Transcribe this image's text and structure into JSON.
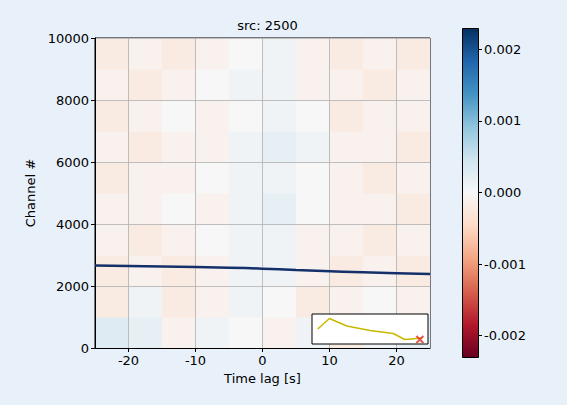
{
  "chart_data": {
    "type": "heatmap",
    "title": "src: 2500",
    "xlabel": "Time lag [s]",
    "ylabel": "Channel #",
    "xlim": [
      -25,
      25
    ],
    "ylim": [
      0,
      10000
    ],
    "xticks": [
      -20,
      -10,
      0,
      10,
      20
    ],
    "yticks": [
      0,
      2000,
      4000,
      6000,
      8000,
      10000
    ],
    "grid": true,
    "x_edges": [
      -25,
      -20,
      -15,
      -10,
      -5,
      0,
      5,
      10,
      15,
      20,
      25
    ],
    "y_edges": [
      0,
      1000,
      2000,
      3000,
      4000,
      5000,
      6000,
      7000,
      8000,
      9000,
      10000
    ],
    "cells": [
      [
        0.0003,
        0.0002,
        -0.0001,
        0.0001,
        0.0,
        -0.0001,
        0.0001,
        -0.0002,
        0.0001,
        0.0002
      ],
      [
        -0.0002,
        0.0001,
        -0.0002,
        -0.0001,
        0.0001,
        0.0,
        -0.0002,
        -0.0001,
        0.0,
        -0.0001
      ],
      [
        -0.0002,
        -0.0001,
        -0.0002,
        -0.0001,
        0.0001,
        0.0001,
        -0.0001,
        -0.0002,
        -0.0001,
        -0.0002
      ],
      [
        -0.0001,
        -0.0002,
        -0.0001,
        0.0,
        0.0001,
        0.0001,
        -0.0001,
        -0.0001,
        -0.0002,
        -0.0001
      ],
      [
        -0.0001,
        -0.0001,
        0.0,
        -0.0001,
        0.0001,
        0.0002,
        0.0,
        -0.0001,
        -0.0001,
        -0.0002
      ],
      [
        -0.0002,
        -0.0001,
        -0.0001,
        0.0,
        0.0001,
        0.0001,
        0.0,
        -0.0001,
        -0.0002,
        -0.0001
      ],
      [
        -0.0001,
        -0.0002,
        -0.0001,
        -0.0001,
        0.0001,
        0.0002,
        0.0001,
        -0.0001,
        -0.0001,
        -0.0002
      ],
      [
        -0.0002,
        -0.0001,
        0.0,
        -0.0001,
        0.0,
        0.0001,
        0.0,
        -0.0002,
        -0.0001,
        -0.0001
      ],
      [
        -0.0001,
        -0.0002,
        -0.0001,
        0.0,
        0.0001,
        0.0001,
        -0.0001,
        -0.0001,
        -0.0002,
        -0.0001
      ],
      [
        -0.0002,
        -0.0001,
        -0.0002,
        -0.0001,
        0.0,
        0.0001,
        -0.0001,
        -0.0002,
        -0.0001,
        -0.0002
      ]
    ],
    "colorbar": {
      "range": [
        -0.0023,
        0.0023
      ],
      "ticks": [
        -0.002,
        -0.001,
        {
          "value": 0,
          "label": "0.000"
        },
        0.001,
        0.002
      ]
    },
    "series": [
      {
        "type": "line",
        "color": "#14306a",
        "x": [
          -25,
          -15,
          -5,
          0,
          5,
          15,
          25
        ],
        "values": [
          2660,
          2630,
          2590,
          2560,
          2520,
          2440,
          2390
        ]
      }
    ],
    "inset": {
      "type": "line",
      "tick_labels": false,
      "xlim": [
        0,
        1
      ],
      "ylim": [
        0,
        1
      ],
      "x": [
        0.05,
        0.15,
        0.3,
        0.5,
        0.7,
        0.8,
        0.95
      ],
      "values": [
        0.5,
        0.85,
        0.6,
        0.45,
        0.35,
        0.15,
        0.2
      ],
      "color": "#c9b800",
      "point": {
        "x": 0.93,
        "y": 0.15,
        "color": "#e03020",
        "marker": "x"
      }
    }
  }
}
